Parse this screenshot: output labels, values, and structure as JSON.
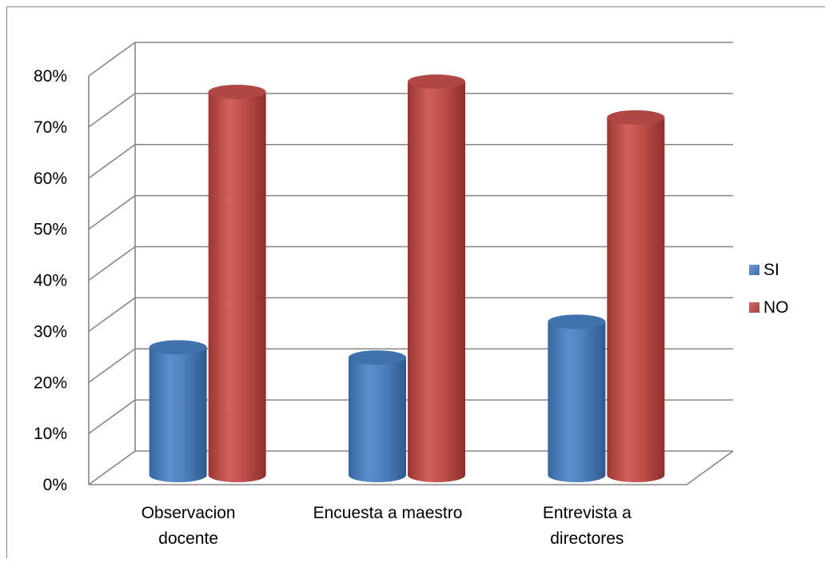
{
  "chart_data": {
    "type": "bar",
    "style": "3d-cylinder",
    "title": "",
    "xlabel": "",
    "ylabel": "",
    "categories": [
      [
        "Observacion",
        "docente"
      ],
      [
        "Encuesta a maestro"
      ],
      [
        "Entrevista a",
        "directores"
      ]
    ],
    "series": [
      {
        "name": "SI",
        "values": [
          25,
          23,
          30
        ],
        "color": "#4f81bd"
      },
      {
        "name": "NO",
        "values": [
          75,
          77,
          70
        ],
        "color": "#c0504d"
      }
    ],
    "ylim": [
      0,
      80
    ],
    "yticks": [
      "0%",
      "10%",
      "20%",
      "30%",
      "40%",
      "50%",
      "60%",
      "70%",
      "80%"
    ],
    "ytick_values": [
      0,
      10,
      20,
      30,
      40,
      50,
      60,
      70,
      80
    ],
    "grid": true,
    "legend_position": "right"
  }
}
